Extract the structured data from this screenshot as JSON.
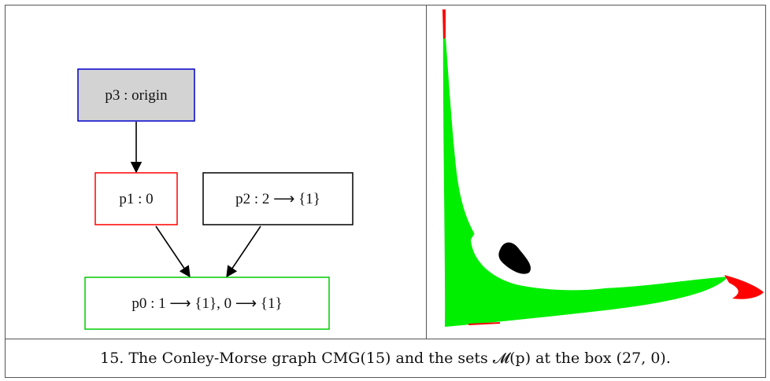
{
  "graph": {
    "nodes": [
      {
        "id": "p3",
        "label": "p3 : origin",
        "border": "#0000cc",
        "fill": "#d3d3d3"
      },
      {
        "id": "p1",
        "label": "p1 : 0",
        "border": "#ff0000",
        "fill": "#ffffff"
      },
      {
        "id": "p2",
        "label": "p2 : 2 ⟶ {1}",
        "border": "#000000",
        "fill": "#ffffff"
      },
      {
        "id": "p0",
        "label": "p0 : 1 ⟶ {1}, 0 ⟶ {1}",
        "border": "#00cc00",
        "fill": "#ffffff"
      }
    ],
    "edges": [
      {
        "from": "p3",
        "to": "p1"
      },
      {
        "from": "p1",
        "to": "p0"
      },
      {
        "from": "p2",
        "to": "p0"
      }
    ]
  },
  "morse_sets": {
    "colors": {
      "green": "#00ee00",
      "red": "#ff0000",
      "black": "#000000"
    }
  },
  "caption": "15. The Conley-Morse graph CMG(15) and the sets 𝓜(p) at the box (27, 0)."
}
